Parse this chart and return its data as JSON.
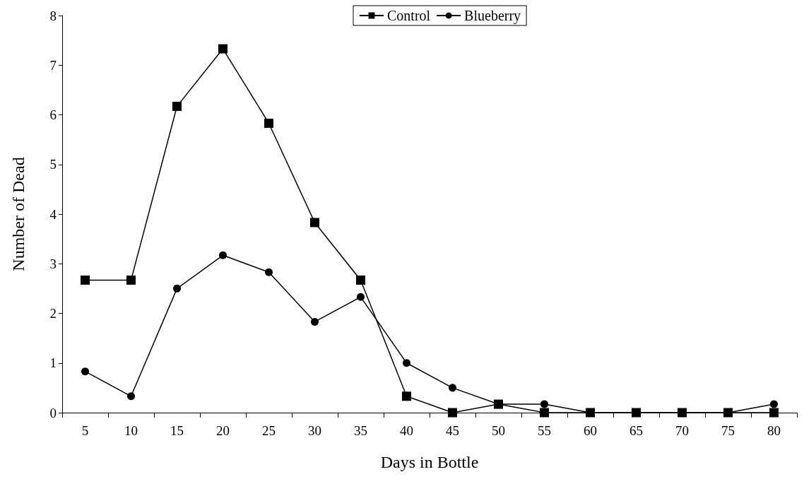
{
  "chart_data": {
    "type": "line",
    "xlabel": "Days in Bottle",
    "ylabel": "Number of Dead",
    "categories": [
      "5",
      "10",
      "15",
      "20",
      "25",
      "30",
      "35",
      "40",
      "45",
      "50",
      "55",
      "60",
      "65",
      "70",
      "75",
      "80"
    ],
    "series": [
      {
        "name": "Control",
        "color": "#000000",
        "marker": "square",
        "values": [
          2.67,
          2.67,
          6.17,
          7.33,
          5.83,
          3.83,
          2.67,
          0.33,
          0,
          0.17,
          0,
          0,
          0,
          0,
          0,
          0
        ]
      },
      {
        "name": "Blueberry",
        "color": "#000000",
        "marker": "circle",
        "values": [
          0.83,
          0.33,
          2.5,
          3.17,
          2.83,
          1.83,
          2.33,
          1,
          0.5,
          0.17,
          0.17,
          0,
          0,
          0,
          0,
          0.17
        ]
      }
    ],
    "ylim": [
      0,
      8
    ],
    "yticks": [
      0,
      1,
      2,
      3,
      4,
      5,
      6,
      7,
      8
    ],
    "grid": false,
    "legend": "top",
    "line_style": "solid"
  }
}
